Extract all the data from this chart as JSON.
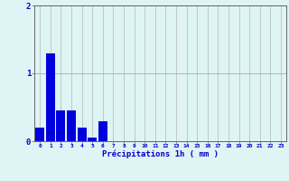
{
  "values": [
    0.2,
    1.3,
    0.45,
    0.45,
    0.2,
    0.05,
    0.3,
    0,
    0,
    0,
    0,
    0,
    0,
    0,
    0,
    0,
    0,
    0,
    0,
    0,
    0,
    0,
    0,
    0
  ],
  "bar_color": "#0000dd",
  "background_color": "#dff4f4",
  "grid_color_h": "#aaaaaa",
  "grid_color_v": "#aaaaaa",
  "xlabel": "Précipitations 1h ( mm )",
  "xlabel_color": "#0000cc",
  "tick_color": "#0000cc",
  "axis_color": "#666666",
  "ylim": [
    0,
    2
  ],
  "yticks": [
    0,
    1,
    2
  ],
  "n_bars": 24,
  "figsize": [
    3.2,
    2.0
  ],
  "dpi": 100
}
